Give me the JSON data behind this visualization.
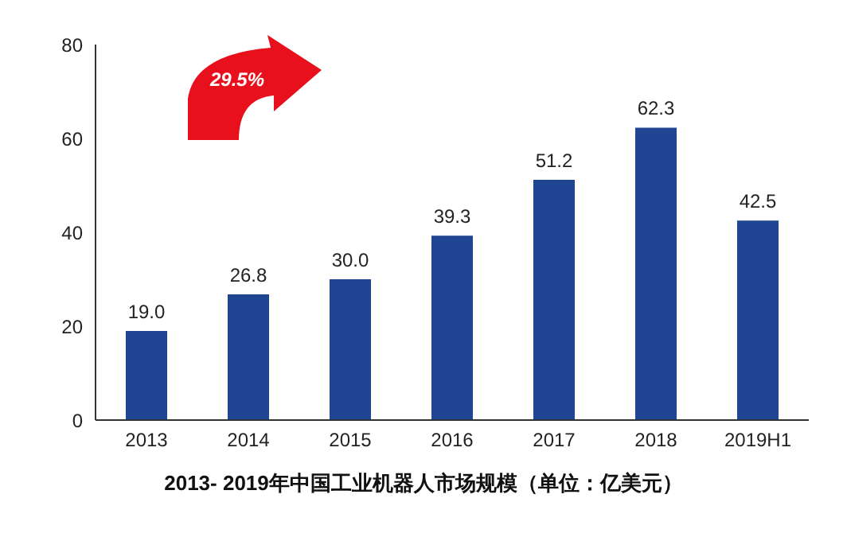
{
  "chart_data": {
    "type": "bar",
    "title": "2013- 2019年中国工业机器人市场规模（单位：亿美元）",
    "categories": [
      "2013",
      "2014",
      "2015",
      "2016",
      "2017",
      "2018",
      "2019H1"
    ],
    "values": [
      19.0,
      26.8,
      30.0,
      39.3,
      51.2,
      62.3,
      42.5
    ],
    "value_labels": [
      "19.0",
      "26.8",
      "30.0",
      "39.3",
      "51.2",
      "62.3",
      "42.5"
    ],
    "color": "#1f4593",
    "ylim": [
      0,
      80
    ],
    "yticks": [
      0,
      20,
      40,
      60,
      80
    ],
    "annotations": [
      "29.5%"
    ]
  }
}
